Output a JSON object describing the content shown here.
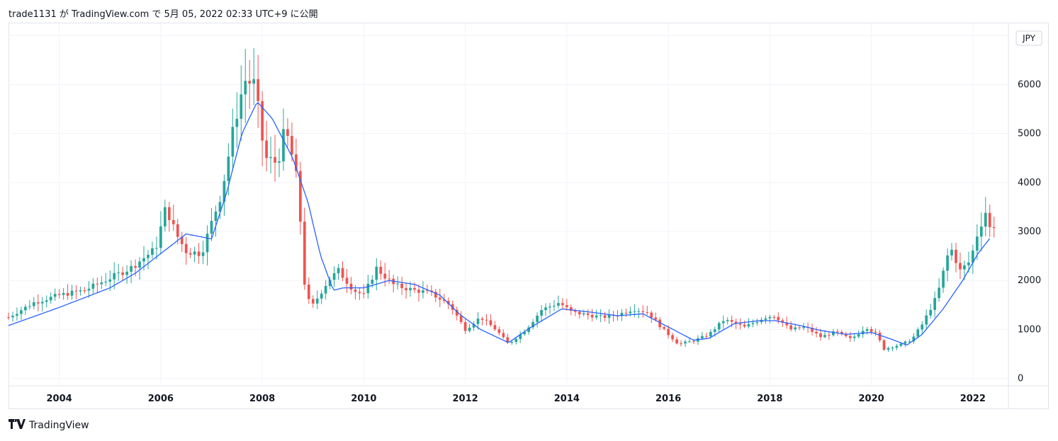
{
  "header": {
    "published": "trade1131 が TradingView.com で 5月 05, 2022 02:33 UTC+9 に公開"
  },
  "footer": {
    "brand": "TradingView"
  },
  "currency": "JPY",
  "colors": {
    "up": "#26a69a",
    "down": "#ef5350",
    "ma": "#2962ff",
    "grid": "#f0f3fa",
    "axis_text": "#131722"
  },
  "chart_data": {
    "type": "candlestick",
    "interval": "monthly",
    "currency": "JPY",
    "x_ticks": [
      "2004",
      "2006",
      "2008",
      "2010",
      "2012",
      "2014",
      "2016",
      "2018",
      "2020",
      "2022"
    ],
    "y_ticks": [
      0,
      1000,
      2000,
      3000,
      4000,
      5000,
      6000,
      7000
    ],
    "ylim": [
      -150,
      7250
    ],
    "xlim": [
      2003.0,
      2022.7
    ],
    "grid": true,
    "moving_average_anchors": [
      [
        2003.0,
        1080
      ],
      [
        2004.0,
        1450
      ],
      [
        2005.0,
        1850
      ],
      [
        2005.5,
        2150
      ],
      [
        2006.0,
        2550
      ],
      [
        2006.5,
        2950
      ],
      [
        2007.0,
        2850
      ],
      [
        2007.3,
        3800
      ],
      [
        2007.6,
        5000
      ],
      [
        2007.9,
        5650
      ],
      [
        2008.2,
        5300
      ],
      [
        2008.6,
        4500
      ],
      [
        2008.9,
        3600
      ],
      [
        2009.15,
        2500
      ],
      [
        2009.4,
        1800
      ],
      [
        2009.6,
        1850
      ],
      [
        2010.0,
        1850
      ],
      [
        2010.5,
        2000
      ],
      [
        2011.0,
        1920
      ],
      [
        2011.5,
        1700
      ],
      [
        2011.9,
        1300
      ],
      [
        2012.3,
        1000
      ],
      [
        2012.85,
        730
      ],
      [
        2013.3,
        1050
      ],
      [
        2013.9,
        1420
      ],
      [
        2014.5,
        1350
      ],
      [
        2015.0,
        1280
      ],
      [
        2015.5,
        1320
      ],
      [
        2016.0,
        1050
      ],
      [
        2016.5,
        780
      ],
      [
        2016.8,
        820
      ],
      [
        2017.3,
        1120
      ],
      [
        2017.8,
        1180
      ],
      [
        2018.1,
        1180
      ],
      [
        2018.6,
        1080
      ],
      [
        2019.0,
        980
      ],
      [
        2019.5,
        900
      ],
      [
        2020.0,
        940
      ],
      [
        2020.4,
        800
      ],
      [
        2020.7,
        680
      ],
      [
        2021.0,
        900
      ],
      [
        2021.4,
        1400
      ],
      [
        2021.8,
        2000
      ],
      [
        2022.1,
        2550
      ],
      [
        2022.35,
        2880
      ]
    ],
    "close_anchors": [
      [
        2003.0,
        1250
      ],
      [
        2003.5,
        1550
      ],
      [
        2004.0,
        1700
      ],
      [
        2004.5,
        1800
      ],
      [
        2005.0,
        2050
      ],
      [
        2005.4,
        2250
      ],
      [
        2005.9,
        2650
      ],
      [
        2006.1,
        3500
      ],
      [
        2006.3,
        2950
      ],
      [
        2006.5,
        2600
      ],
      [
        2006.8,
        2550
      ],
      [
        2007.2,
        3800
      ],
      [
        2007.45,
        5200
      ],
      [
        2007.65,
        6100
      ],
      [
        2007.85,
        6000
      ],
      [
        2008.05,
        4500
      ],
      [
        2008.3,
        4400
      ],
      [
        2008.45,
        5100
      ],
      [
        2008.65,
        4300
      ],
      [
        2008.78,
        2900
      ],
      [
        2008.85,
        1650
      ],
      [
        2009.0,
        1500
      ],
      [
        2009.3,
        2000
      ],
      [
        2009.5,
        2200
      ],
      [
        2009.8,
        1800
      ],
      [
        2010.0,
        1700
      ],
      [
        2010.25,
        2250
      ],
      [
        2010.6,
        1900
      ],
      [
        2011.0,
        1800
      ],
      [
        2011.3,
        1750
      ],
      [
        2011.7,
        1500
      ],
      [
        2012.0,
        1000
      ],
      [
        2012.3,
        1250
      ],
      [
        2012.6,
        1000
      ],
      [
        2012.85,
        700
      ],
      [
        2013.2,
        1000
      ],
      [
        2013.5,
        1400
      ],
      [
        2013.85,
        1550
      ],
      [
        2014.1,
        1350
      ],
      [
        2014.4,
        1300
      ],
      [
        2014.7,
        1250
      ],
      [
        2015.0,
        1300
      ],
      [
        2015.3,
        1420
      ],
      [
        2015.6,
        1350
      ],
      [
        2015.9,
        1000
      ],
      [
        2016.2,
        700
      ],
      [
        2016.5,
        770
      ],
      [
        2016.8,
        900
      ],
      [
        2017.1,
        1200
      ],
      [
        2017.5,
        1050
      ],
      [
        2017.9,
        1250
      ],
      [
        2018.1,
        1280
      ],
      [
        2018.4,
        1000
      ],
      [
        2018.7,
        1050
      ],
      [
        2019.0,
        850
      ],
      [
        2019.3,
        950
      ],
      [
        2019.6,
        800
      ],
      [
        2019.9,
        1050
      ],
      [
        2020.1,
        900
      ],
      [
        2020.25,
        600
      ],
      [
        2020.6,
        700
      ],
      [
        2020.8,
        800
      ],
      [
        2021.0,
        1100
      ],
      [
        2021.3,
        1700
      ],
      [
        2021.55,
        2700
      ],
      [
        2021.75,
        2200
      ],
      [
        2021.95,
        2400
      ],
      [
        2022.1,
        3000
      ],
      [
        2022.25,
        3400
      ],
      [
        2022.35,
        3000
      ],
      [
        2022.45,
        3200
      ]
    ],
    "annotations": []
  }
}
